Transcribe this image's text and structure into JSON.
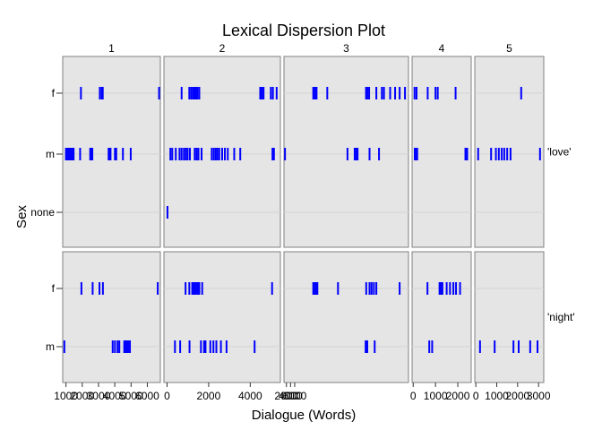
{
  "chart_data": {
    "type": "scatter",
    "title": "Lexical Dispersion Plot",
    "xlabel": "Dialogue (Words)",
    "ylabel": "Sex",
    "y_categories": [
      "f",
      "m",
      "none"
    ],
    "column_panels": [
      "1",
      "2",
      "3",
      "4",
      "5"
    ],
    "row_panels": [
      "'love'",
      "'night'"
    ],
    "columns": [
      {
        "label": "1",
        "xlim": [
          800,
          6800
        ],
        "ticks": [
          1000,
          2000,
          3000,
          4000,
          5000,
          6000
        ],
        "tick_labels": [
          "1000",
          "2000",
          "3000",
          "4000",
          "5000",
          "6000"
        ]
      },
      {
        "label": "2",
        "xlim": [
          -150,
          5450
        ],
        "ticks": [
          0,
          2000,
          4000
        ],
        "tick_labels": [
          "0",
          "2000",
          "4000"
        ]
      },
      {
        "label": "3",
        "xlim": [
          800,
          61200
        ],
        "ticks": [
          2000,
          4000,
          6000
        ],
        "tick_labels": [
          "2000",
          "4000",
          "6000"
        ]
      },
      {
        "label": "4",
        "xlim": [
          -50,
          2600
        ],
        "ticks": [
          0,
          1000,
          2000
        ],
        "tick_labels": [
          "0",
          "1000",
          "2000"
        ]
      },
      {
        "label": "5",
        "xlim": [
          -50,
          3250
        ],
        "ticks": [
          0,
          1000,
          2000,
          3000
        ],
        "tick_labels": [
          "0",
          "1000",
          "2000",
          "3000"
        ]
      }
    ],
    "panels": [
      {
        "row": 0,
        "col": 0,
        "f": [
          1920,
          3080,
          3200,
          3260,
          6720
        ],
        "m": [
          1000,
          1050,
          1090,
          1120,
          1150,
          1200,
          1230,
          1270,
          1330,
          1400,
          1470,
          1870,
          2490,
          2560,
          2620,
          3620,
          3680,
          3740,
          4010,
          4090,
          4500,
          4980
        ],
        "none": []
      },
      {
        "row": 0,
        "col": 1,
        "f": [
          700,
          1070,
          1160,
          1250,
          1320,
          1390,
          1460,
          1550,
          4480,
          4560,
          4640,
          4990,
          5090,
          5270
        ],
        "m": [
          160,
          250,
          420,
          600,
          700,
          810,
          900,
          990,
          1100,
          1330,
          1420,
          1510,
          1660,
          2150,
          2250,
          2340,
          2420,
          2510,
          2650,
          2780,
          2920,
          3230,
          3520,
          5070,
          5140
        ],
        "none": [
          20
        ]
      },
      {
        "row": 0,
        "col": 2,
        "f": [
          15000,
          15800,
          16600,
          21800,
          40600,
          41200,
          42100,
          45600,
          48300,
          49300,
          52300,
          54700,
          56900,
          59500
        ],
        "m": [
          1300,
          31600,
          35100,
          35800,
          36500,
          42300,
          46900
        ],
        "none": []
      },
      {
        "row": 0,
        "col": 3,
        "f": [
          60,
          150,
          650,
          1000,
          1100,
          1900
        ],
        "m": [
          70,
          120,
          180,
          2340,
          2420
        ],
        "none": []
      },
      {
        "row": 0,
        "col": 4,
        "f": [
          2170
        ],
        "m": [
          110,
          730,
          960,
          1100,
          1240,
          1360,
          1500,
          1660,
          3070
        ],
        "none": []
      },
      {
        "row": 1,
        "col": 0,
        "f": [
          1950,
          2640,
          3060,
          3270,
          6640
        ],
        "m": [
          900,
          3870,
          4010,
          4170,
          4280,
          4580,
          4680,
          4750,
          4830,
          4930
        ],
        "none": []
      },
      {
        "row": 1,
        "col": 1,
        "f": [
          890,
          1070,
          1210,
          1280,
          1340,
          1400,
          1480,
          1550,
          1690,
          5050
        ],
        "m": [
          380,
          630,
          1080,
          1630,
          1780,
          1850,
          2080,
          2230,
          2370,
          2590,
          2860,
          4210
        ],
        "none": []
      },
      {
        "row": 1,
        "col": 2,
        "f": [
          15000,
          15400,
          15800,
          16200,
          16600,
          17000,
          27000,
          40700,
          42300,
          43300,
          44400,
          45600,
          56900
        ],
        "m": [
          40400,
          41200,
          44800
        ],
        "none": []
      },
      {
        "row": 1,
        "col": 3,
        "f": [
          640,
          1180,
          1250,
          1310,
          1500,
          1650,
          1800,
          1920,
          2100
        ],
        "m": [
          720,
          850
        ],
        "none": []
      },
      {
        "row": 1,
        "col": 4,
        "f": [],
        "m": [
          200,
          900,
          1800,
          2050,
          2600,
          2950
        ],
        "none": []
      }
    ]
  },
  "colors": {
    "mark": "#0000ff",
    "panel_bg": "#e5e5e5",
    "panel_border": "#808080",
    "grid": "#d3d3d3"
  }
}
